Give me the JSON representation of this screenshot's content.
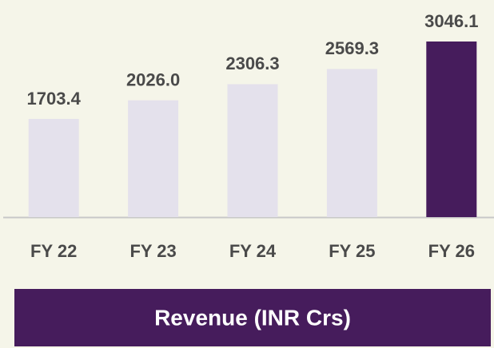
{
  "chart_data": {
    "type": "bar",
    "title": "Revenue (INR Crs)",
    "categories": [
      "FY 22",
      "FY 23",
      "FY 24",
      "FY 25",
      "FY 26"
    ],
    "values": [
      1703.4,
      2026.0,
      2306.3,
      2569.3,
      3046.1
    ],
    "value_labels": [
      "1703.4",
      "2026.0",
      "2306.3",
      "2569.3",
      "3046.1"
    ],
    "colors": [
      "#e4e1ec",
      "#e4e1ec",
      "#e4e1ec",
      "#e4e1ec",
      "#461c5c"
    ]
  }
}
